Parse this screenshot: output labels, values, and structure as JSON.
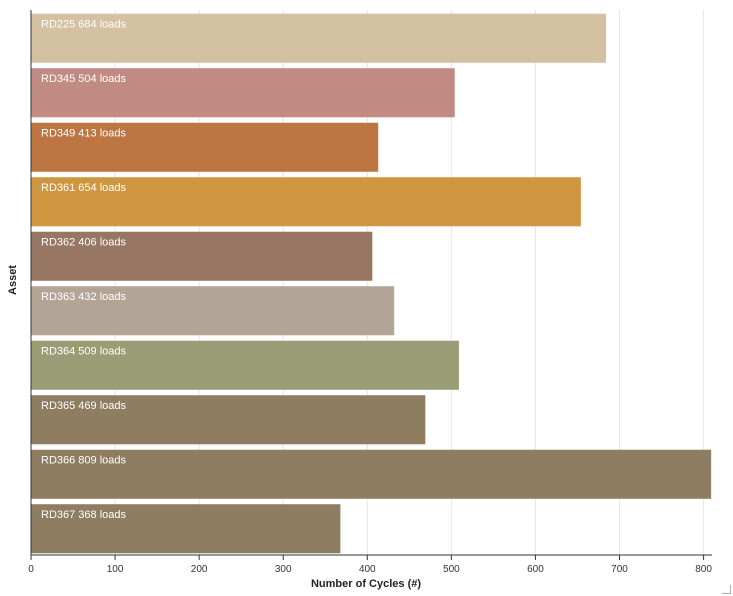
{
  "chart_data": {
    "type": "bar",
    "orientation": "horizontal",
    "xlabel": "Number of Cycles (#)",
    "ylabel": "Asset",
    "xlim": [
      0,
      810
    ],
    "xticks": [
      0,
      100,
      200,
      300,
      400,
      500,
      600,
      700,
      800
    ],
    "grid": "vertical",
    "unit_suffix": "loads",
    "categories": [
      "RD225",
      "RD345",
      "RD349",
      "RD361",
      "RD362",
      "RD363",
      "RD364",
      "RD365",
      "RD366",
      "RD367"
    ],
    "values": [
      684,
      504,
      413,
      654,
      406,
      432,
      509,
      469,
      809,
      368
    ],
    "colors": [
      "#D3C1A1",
      "#C18B83",
      "#BD7542",
      "#CF963F",
      "#977763",
      "#B2A596",
      "#9A9C75",
      "#8E7D61",
      "#8E7D61",
      "#8E7D61"
    ],
    "label_color": "#ffffff",
    "grid_color": "#e6e6e6",
    "axis_color": "#333333"
  }
}
